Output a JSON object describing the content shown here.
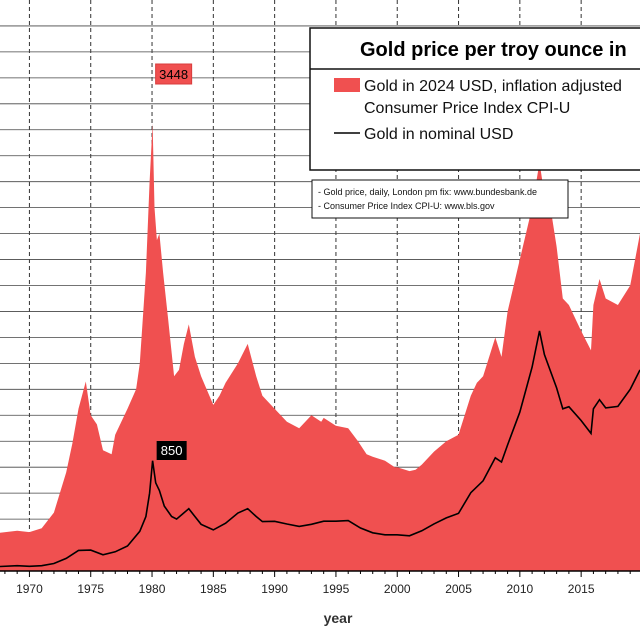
{
  "chart_data": {
    "type": "area",
    "title": "Gold price per troy ounce in",
    "xlabel": "year",
    "ylabel": "",
    "xlim": [
      1967.6,
      2019.8
    ],
    "ylim": [
      0,
      4400
    ],
    "grid": true,
    "x_ticks": [
      "1970",
      "1975",
      "1980",
      "1985",
      "1990",
      "1995",
      "2000",
      "2005",
      "2010",
      "2015"
    ],
    "series": [
      {
        "name": "Gold in 2024 USD, inflation adjusted",
        "color": "#f05050",
        "x": [
          1967.6,
          1969,
          1970,
          1971,
          1972,
          1973,
          1973.5,
          1974,
          1974.6,
          1975,
          1975.5,
          1976,
          1976.7,
          1977,
          1978,
          1978.7,
          1979,
          1979.5,
          1979.8,
          1980.05,
          1980.2,
          1980.4,
          1980.6,
          1980.9,
          1981.3,
          1981.8,
          1982.2,
          1982.6,
          1983.0,
          1983.5,
          1984,
          1985,
          1985.5,
          1986,
          1987,
          1987.8,
          1988.5,
          1989,
          1990,
          1991,
          1992,
          1993,
          1993.8,
          1994,
          1995,
          1996,
          1996.8,
          1997.5,
          1998,
          1999,
          1999.8,
          2000,
          2001,
          2001.5,
          2002,
          2003,
          2004,
          2005,
          2006,
          2006.5,
          2007,
          2008,
          2008.5,
          2009,
          2010,
          2011,
          2011.6,
          2012,
          2012.5,
          2013,
          2013.5,
          2014,
          2015,
          2015.8,
          2016,
          2016.5,
          2017,
          2018,
          2019,
          2019.8
        ],
        "values": [
          295,
          310,
          300,
          330,
          450,
          760,
          980,
          1250,
          1460,
          1200,
          1130,
          930,
          900,
          1050,
          1250,
          1400,
          1600,
          2300,
          3000,
          3448,
          2800,
          2550,
          2600,
          2300,
          1950,
          1500,
          1550,
          1750,
          1900,
          1650,
          1500,
          1280,
          1350,
          1450,
          1600,
          1750,
          1500,
          1350,
          1250,
          1150,
          1100,
          1200,
          1150,
          1180,
          1120,
          1100,
          1000,
          900,
          880,
          850,
          800,
          800,
          770,
          780,
          820,
          920,
          1000,
          1050,
          1350,
          1450,
          1500,
          1800,
          1650,
          2000,
          2400,
          2800,
          3150,
          2900,
          2800,
          2500,
          2100,
          2050,
          1850,
          1700,
          2050,
          2250,
          2100,
          2050,
          2200,
          2600
        ]
      },
      {
        "name": "Gold in nominal USD",
        "color": "#000000",
        "x": [
          1967.6,
          1969,
          1970,
          1971,
          1972,
          1973,
          1974,
          1975,
          1976,
          1977,
          1978,
          1979,
          1979.5,
          1979.8,
          1980.05,
          1980.3,
          1980.6,
          1981,
          1981.6,
          1982,
          1982.5,
          1983,
          1983.5,
          1984,
          1985,
          1986,
          1987,
          1987.8,
          1988.5,
          1989,
          1990,
          1991,
          1992,
          1993,
          1994,
          1995,
          1996,
          1997,
          1998,
          1999,
          2000,
          2001,
          2002,
          2003,
          2004,
          2005,
          2006,
          2007,
          2008,
          2008.5,
          2009,
          2010,
          2011,
          2011.6,
          2012,
          2013,
          2013.5,
          2014,
          2015,
          2015.8,
          2016,
          2016.5,
          2017,
          2018,
          2019,
          2019.8
        ],
        "values": [
          35,
          41,
          36,
          41,
          58,
          97,
          159,
          161,
          125,
          148,
          193,
          306,
          420,
          600,
          850,
          680,
          620,
          500,
          420,
          400,
          440,
          480,
          420,
          360,
          317,
          368,
          447,
          480,
          420,
          381,
          383,
          362,
          344,
          360,
          384,
          384,
          388,
          331,
          294,
          279,
          279,
          271,
          310,
          363,
          409,
          444,
          603,
          695,
          872,
          840,
          972,
          1224,
          1571,
          1850,
          1668,
          1411,
          1250,
          1266,
          1160,
          1060,
          1250,
          1320,
          1257,
          1268,
          1400,
          1550
        ]
      }
    ],
    "annotations": [
      {
        "label": "3448",
        "x": 1980.05,
        "y": 3448
      },
      {
        "label": "850",
        "x": 1980.05,
        "y": 850
      }
    ],
    "legend_position": "top-right"
  },
  "legend": {
    "inflation_label_line1": "Gold in 2024 USD, inflation adjusted",
    "inflation_label_line2": "Consumer Price Index CPI-U",
    "nominal_label": "Gold in nominal USD"
  },
  "sources": {
    "line1": "- Gold price, daily, London pm fix: www.bundesbank.de",
    "line2": "- Consumer Price Index CPI-U: www.bls.gov"
  }
}
